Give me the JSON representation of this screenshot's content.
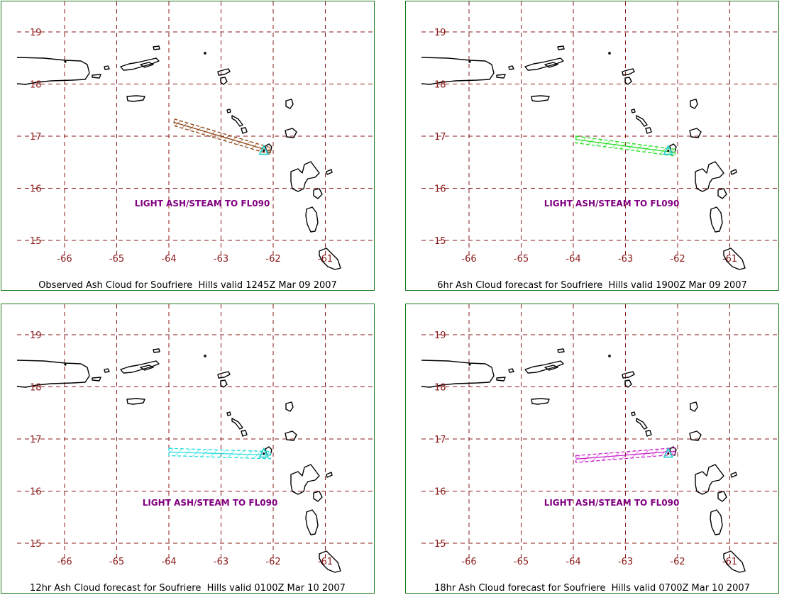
{
  "colors": {
    "grid": "#8b1a1a",
    "tick_label": "#8b1a1a",
    "coast": "#000000",
    "annotation": "#800080",
    "border": "#1a7a1a"
  },
  "map": {
    "lat_labels": [
      "19",
      "18",
      "17",
      "16",
      "15"
    ],
    "lat_values": [
      19,
      18,
      17,
      16,
      15
    ],
    "lon_labels": [
      "-66",
      "-65",
      "-64",
      "-63",
      "-62",
      "-61"
    ],
    "lon_values": [
      -66,
      -65,
      -64,
      -63,
      -62,
      -61
    ]
  },
  "panels": [
    {
      "caption": "Observed Ash Cloud for Soufriere  Hills valid 1245Z Mar 09 2007",
      "annotation": "LIGHT ASH/STEAM TO FL090",
      "cloud_color": "#8b4513",
      "cloud": [
        [
          -63.9,
          17.33
        ],
        [
          -62.05,
          16.78
        ],
        [
          -62.05,
          16.65
        ],
        [
          -63.9,
          17.2
        ]
      ]
    },
    {
      "caption": "6hr Ash Cloud forecast for Soufriere  Hills valid 1900Z Mar 09 2007",
      "annotation": "LIGHT ASH/STEAM TO FL090",
      "cloud_color": "#22dd22",
      "cloud": [
        [
          -63.95,
          17.0
        ],
        [
          -62.05,
          16.75
        ],
        [
          -62.05,
          16.62
        ],
        [
          -63.95,
          16.87
        ]
      ]
    },
    {
      "caption": "12hr Ash Cloud forecast for Soufriere  Hills valid 0100Z Mar 10 2007",
      "annotation": "LIGHT ASH/STEAM TO FL090",
      "cloud_color": "#22dddd",
      "cloud": [
        [
          -64.0,
          16.82
        ],
        [
          -62.05,
          16.76
        ],
        [
          -62.05,
          16.62
        ],
        [
          -64.0,
          16.68
        ]
      ]
    },
    {
      "caption": "18hr Ash Cloud forecast for Soufriere  Hills valid 0700Z Mar 10 2007",
      "annotation": "LIGHT ASH/STEAM TO FL090",
      "cloud_color": "#cc22cc",
      "cloud": [
        [
          -63.95,
          16.68
        ],
        [
          -62.05,
          16.83
        ],
        [
          -62.05,
          16.7
        ],
        [
          -63.95,
          16.55
        ]
      ]
    }
  ]
}
